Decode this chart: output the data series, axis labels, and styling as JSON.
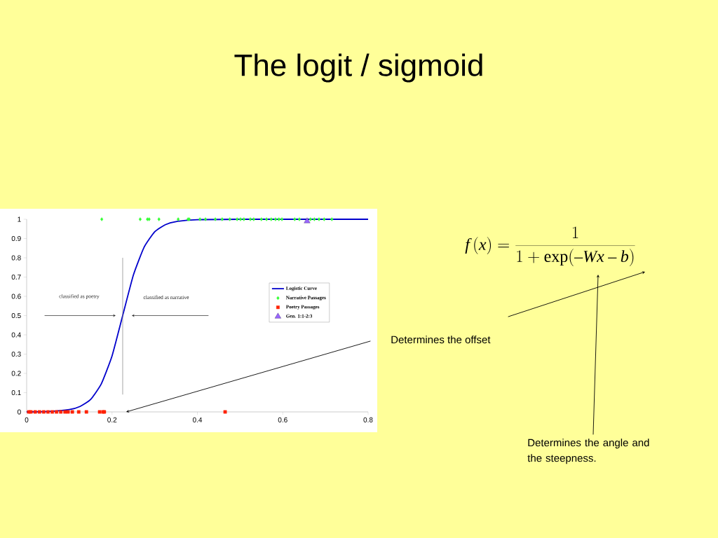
{
  "chart_data": {
    "type": "scatter",
    "title": "The logit / sigmoid",
    "xlim": [
      0,
      0.8
    ],
    "ylim": [
      0,
      1
    ],
    "xticks": [
      0,
      0.2,
      0.4,
      0.6,
      0.8
    ],
    "yticks": [
      0,
      0.1,
      0.2,
      0.3,
      0.4,
      0.5,
      0.6,
      0.7,
      0.8,
      0.9,
      1
    ],
    "legend": "right",
    "ref_lines": [
      {
        "axis": "x",
        "value": 0.225,
        "color": "#808080"
      }
    ],
    "annotations": [
      "classified as poetry",
      "classified as narrative",
      "f\\,(x)=\\frac{1}{1+\\exp(-Wx-b)}",
      "Determines the offset",
      "Determines the angle and the steepness."
    ],
    "series": [
      {
        "name": "Logistic Curve",
        "type": "line",
        "marker": "none",
        "color": "#0000cc",
        "x": [
          0,
          0.05,
          0.1,
          0.125,
          0.15,
          0.175,
          0.2,
          0.225,
          0.25,
          0.275,
          0.3,
          0.325,
          0.35,
          0.4,
          0.5,
          0.6,
          0.7,
          0.8
        ],
        "values": [
          0,
          0.002,
          0.012,
          0.028,
          0.065,
          0.146,
          0.29,
          0.5,
          0.71,
          0.854,
          0.935,
          0.972,
          0.988,
          0.998,
          1,
          1,
          1,
          1
        ]
      },
      {
        "name": "Narrative Passages",
        "type": "scatter",
        "marker": "diamond",
        "color": "#33ff33",
        "x": [
          0.176,
          0.266,
          0.283,
          0.287,
          0.31,
          0.355,
          0.378,
          0.381,
          0.406,
          0.419,
          0.442,
          0.458,
          0.476,
          0.493,
          0.501,
          0.509,
          0.524,
          0.532,
          0.55,
          0.562,
          0.573,
          0.583,
          0.591,
          0.598,
          0.628,
          0.639,
          0.665,
          0.674,
          0.685,
          0.697,
          0.715
        ],
        "values": [
          1,
          1,
          1,
          1,
          1,
          1,
          1,
          1,
          1,
          1,
          1,
          1,
          1,
          1,
          1,
          1,
          1,
          1,
          1,
          1,
          1,
          1,
          1,
          1,
          1,
          1,
          1,
          1,
          1,
          1,
          1
        ]
      },
      {
        "name": "Poetry Passages",
        "type": "scatter",
        "marker": "square",
        "color": "#ff2200",
        "x": [
          0.005,
          0.01,
          0.02,
          0.03,
          0.04,
          0.05,
          0.06,
          0.07,
          0.08,
          0.09,
          0.097,
          0.107,
          0.122,
          0.14,
          0.171,
          0.179,
          0.182,
          0.465
        ],
        "values": [
          0,
          0,
          0,
          0,
          0,
          0,
          0,
          0,
          0,
          0,
          0,
          0,
          0,
          0,
          0,
          0,
          0,
          0
        ]
      },
      {
        "name": "Gen. 1:1-2:3",
        "type": "scatter",
        "marker": "triangle",
        "color": "#9966ff",
        "x": [
          0.657
        ],
        "values": [
          0.99
        ]
      }
    ]
  }
}
